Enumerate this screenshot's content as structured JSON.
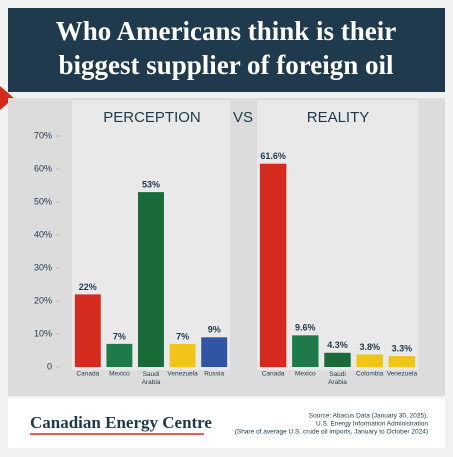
{
  "header": {
    "title_lines": [
      "Who Americans think is their",
      "biggest supplier of foreign oil"
    ]
  },
  "separator": "VS",
  "chart_data": [
    {
      "type": "bar",
      "title": "PERCEPTION",
      "categories": [
        "Canada",
        "Mexico",
        "Saudi Arabia",
        "Venezuela",
        "Russia"
      ],
      "values": [
        22,
        7,
        53,
        7,
        9
      ],
      "value_labels": [
        "22%",
        "7%",
        "53%",
        "7%",
        "9%"
      ],
      "colors": [
        "#d52b1e",
        "#1f7a4a",
        "#1a6b3a",
        "#f0c419",
        "#2f55a4"
      ],
      "ylim": [
        0,
        70
      ],
      "yticks": [
        0,
        {
          "value": 10,
          "label": "10%"
        },
        {
          "value": 20,
          "label": "20%"
        },
        {
          "value": 30,
          "label": "30%"
        },
        {
          "value": 40,
          "label": "40%"
        },
        {
          "value": 50,
          "label": "50%"
        },
        {
          "value": 60,
          "label": "60%"
        },
        {
          "value": 70,
          "label": "70%"
        }
      ]
    },
    {
      "type": "bar",
      "title": "REALITY",
      "categories": [
        "Canada",
        "Mexico",
        "Saudi Arabia",
        "Colombia",
        "Venezuela"
      ],
      "values": [
        61.6,
        9.6,
        4.3,
        3.8,
        3.3
      ],
      "value_labels": [
        "61.6%",
        "9.6%",
        "4.3%",
        "3.8%",
        "3.3%"
      ],
      "colors": [
        "#d52b1e",
        "#1f7a4a",
        "#1a6b3a",
        "#f0c419",
        "#f0c419"
      ],
      "ylim": [
        0,
        70
      ]
    }
  ],
  "footer": {
    "brand": "Canadian Energy Centre",
    "source_lines": [
      "Source: Abacus Data (January 30, 2025),",
      "U.S. Energy Information Administration",
      "(Share of average U.S. crude oil imports, January to October 2024)"
    ]
  }
}
